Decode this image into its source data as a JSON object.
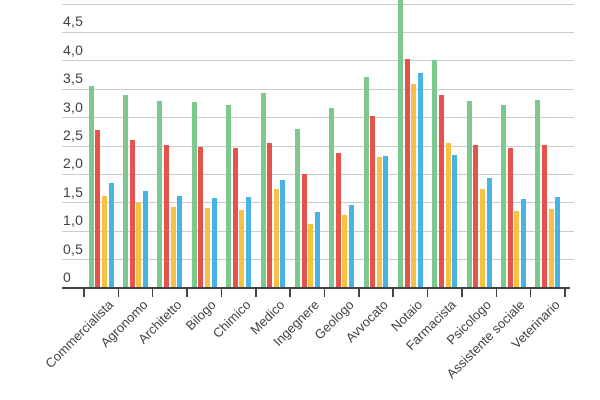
{
  "chart_data": {
    "type": "bar",
    "title": "",
    "xlabel": "",
    "ylabel": "",
    "categories": [
      "Commercialista",
      "Agronomo",
      "Architetto",
      "Bilogo",
      "Chimico",
      "Medico",
      "Ingegnere",
      "Geologo",
      "Avvocato",
      "Notaio",
      "Farmacista",
      "Psicologo",
      "Assistente sociale",
      "Veterinario"
    ],
    "series": [
      {
        "name": "series-1-green",
        "color": "#7cc88f",
        "values": [
          3.55,
          3.4,
          3.3,
          3.27,
          3.23,
          3.44,
          2.8,
          3.17,
          3.72,
          5.1,
          4.01,
          3.3,
          3.23,
          3.31
        ]
      },
      {
        "name": "series-2-red",
        "color": "#e8524c",
        "values": [
          2.78,
          2.6,
          2.52,
          2.48,
          2.46,
          2.55,
          2.01,
          2.37,
          3.02,
          4.03,
          3.4,
          2.52,
          2.46,
          2.51
        ]
      },
      {
        "name": "series-3-yellow",
        "color": "#f5c244",
        "values": [
          1.62,
          1.5,
          1.42,
          1.4,
          1.38,
          1.74,
          1.12,
          1.29,
          2.3,
          3.6,
          2.55,
          1.75,
          1.36,
          1.39
        ]
      },
      {
        "name": "series-4-blue",
        "color": "#47b3e6",
        "values": [
          1.84,
          1.7,
          1.62,
          1.58,
          1.6,
          1.9,
          1.33,
          1.46,
          2.32,
          3.79,
          2.34,
          1.94,
          1.57,
          1.6
        ]
      }
    ],
    "ylim": [
      0,
      5
    ],
    "ytick_step": 0.5,
    "ytick_labels": [
      "0",
      "0,5",
      "1,0",
      "1,5",
      "2,0",
      "2,5",
      "3,0",
      "3,5",
      "4,0",
      "4,5"
    ],
    "grid": true,
    "legend": "none",
    "clipped_bars": [
      {
        "category": "Notaio",
        "series": "series-1-green",
        "note": "bar exceeds top of visible chart area"
      }
    ]
  },
  "axis_style": {
    "gridline_color": "#cccccc",
    "baseline_color": "#424242",
    "tick_color": "#424242",
    "label_color": "#424242"
  },
  "background_color": "#ffffff"
}
